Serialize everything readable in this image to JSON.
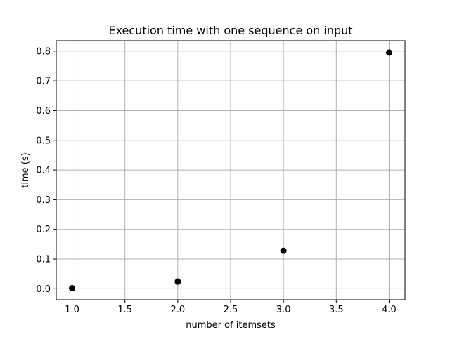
{
  "chart_data": {
    "type": "scatter",
    "title": "Execution time with one sequence on input",
    "xlabel": "number of itemsets",
    "ylabel": "time (s)",
    "x": [
      1.0,
      2.0,
      3.0,
      4.0
    ],
    "y": [
      0.002,
      0.024,
      0.128,
      0.795
    ],
    "xlim": [
      0.85,
      4.15
    ],
    "ylim": [
      -0.037,
      0.835
    ],
    "xticks": [
      1.0,
      1.5,
      2.0,
      2.5,
      3.0,
      3.5,
      4.0
    ],
    "xtick_labels": [
      "1.0",
      "1.5",
      "2.0",
      "2.5",
      "3.0",
      "3.5",
      "4.0"
    ],
    "yticks": [
      0.0,
      0.1,
      0.2,
      0.3,
      0.4,
      0.5,
      0.6,
      0.7,
      0.8
    ],
    "ytick_labels": [
      "0.0",
      "0.1",
      "0.2",
      "0.3",
      "0.4",
      "0.5",
      "0.6",
      "0.7",
      "0.8"
    ],
    "grid": true,
    "marker_color": "#000000",
    "grid_color": "#b0b0b0"
  }
}
